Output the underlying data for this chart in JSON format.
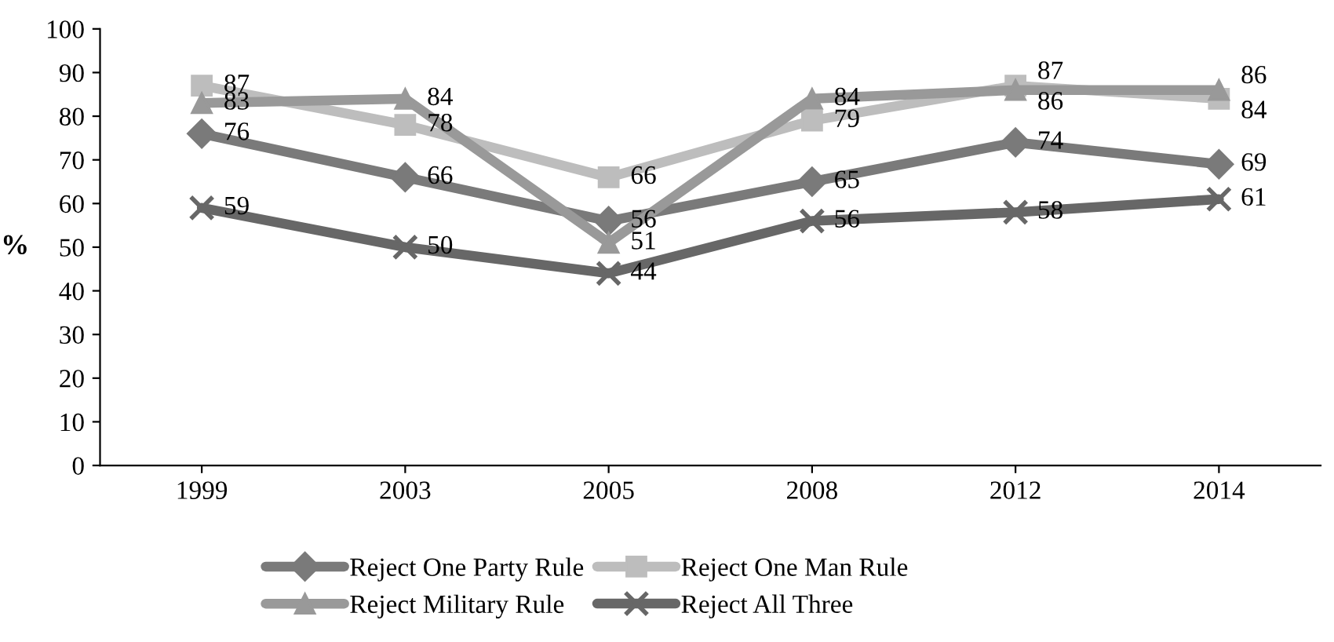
{
  "chart_data": {
    "type": "line",
    "ylabel": "%",
    "categories": [
      "1999",
      "2003",
      "2005",
      "2008",
      "2012",
      "2014"
    ],
    "series": [
      {
        "name": "Reject One Party Rule",
        "color": "#7a7a7a",
        "marker": "diamond",
        "values": [
          76,
          66,
          56,
          65,
          74,
          69
        ]
      },
      {
        "name": "Reject One Man Rule",
        "color": "#bdbdbd",
        "marker": "square",
        "values": [
          87,
          78,
          66,
          79,
          87,
          84
        ]
      },
      {
        "name": "Reject Military Rule",
        "color": "#999999",
        "marker": "triangle",
        "values": [
          83,
          84,
          51,
          84,
          86,
          86
        ]
      },
      {
        "name": "Reject All Three",
        "color": "#676767",
        "marker": "cross",
        "values": [
          59,
          50,
          44,
          56,
          58,
          61
        ]
      }
    ],
    "ylim": [
      0,
      100
    ],
    "yticks": [
      0,
      10,
      20,
      30,
      40,
      50,
      60,
      70,
      80,
      90,
      100
    ],
    "data_labels": true,
    "legend": "bottom",
    "grid": false,
    "line_style": "solid"
  }
}
